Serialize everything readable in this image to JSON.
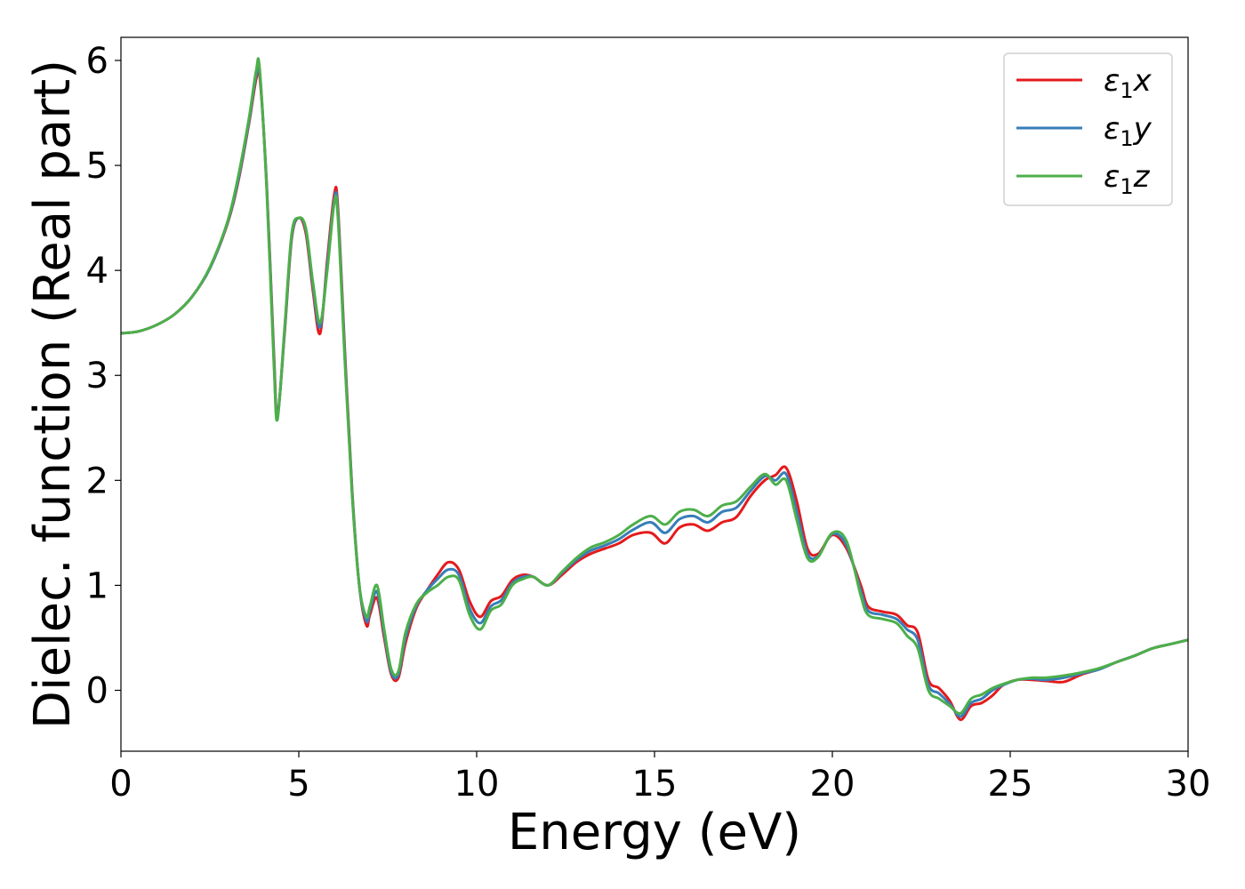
{
  "chart_data": {
    "type": "line",
    "xlabel": "Energy (eV)",
    "ylabel": "Dielec. function (Real part)",
    "xlim": [
      0,
      30
    ],
    "ylim": [
      -0.58,
      6.22
    ],
    "xticks": [
      "0",
      "5",
      "10",
      "15",
      "20",
      "25",
      "30"
    ],
    "yticks": [
      "0",
      "1",
      "2",
      "3",
      "4",
      "5",
      "6"
    ],
    "grid": false,
    "legend_position": "top-right",
    "series": [
      {
        "name": "ε₁x",
        "label_main": "ε",
        "label_sub": "1",
        "label_suffix": "x",
        "color": "#e41a1c",
        "x": [
          0,
          0.5,
          1,
          1.5,
          2,
          2.5,
          3,
          3.3,
          3.6,
          3.8,
          3.9,
          4.1,
          4.3,
          4.4,
          4.6,
          4.8,
          5,
          5.2,
          5.4,
          5.6,
          5.8,
          6,
          6.1,
          6.3,
          6.5,
          6.7,
          6.9,
          7,
          7.2,
          7.4,
          7.6,
          7.8,
          8,
          8.3,
          8.6,
          8.9,
          9.2,
          9.5,
          9.8,
          10.1,
          10.4,
          10.7,
          11,
          11.3,
          11.6,
          12,
          12.4,
          12.8,
          13.2,
          13.6,
          14,
          14.4,
          14.9,
          15.3,
          15.7,
          16.1,
          16.5,
          16.9,
          17.3,
          17.7,
          18.1,
          18.4,
          18.7,
          19,
          19.3,
          19.6,
          20,
          20.4,
          20.8,
          21,
          21.4,
          21.8,
          22.1,
          22.4,
          22.7,
          23,
          23.3,
          23.6,
          23.9,
          24.2,
          24.5,
          24.8,
          25.2,
          25.6,
          26,
          26.5,
          27,
          27.5,
          28,
          28.5,
          29,
          29.5,
          30
        ],
        "y": [
          3.4,
          3.42,
          3.48,
          3.58,
          3.75,
          4.02,
          4.45,
          4.85,
          5.4,
          5.82,
          5.85,
          4.8,
          3.2,
          2.62,
          3.4,
          4.3,
          4.5,
          4.35,
          3.8,
          3.4,
          4.1,
          4.73,
          4.6,
          3.2,
          1.9,
          1.0,
          0.62,
          0.72,
          0.88,
          0.5,
          0.15,
          0.12,
          0.45,
          0.78,
          0.95,
          1.1,
          1.22,
          1.15,
          0.85,
          0.7,
          0.85,
          0.9,
          1.05,
          1.1,
          1.08,
          1.0,
          1.1,
          1.22,
          1.3,
          1.35,
          1.4,
          1.48,
          1.5,
          1.4,
          1.55,
          1.58,
          1.52,
          1.6,
          1.65,
          1.85,
          2.0,
          2.05,
          2.12,
          1.8,
          1.35,
          1.3,
          1.48,
          1.35,
          1.0,
          0.8,
          0.75,
          0.72,
          0.62,
          0.55,
          0.1,
          0.02,
          -0.1,
          -0.28,
          -0.15,
          -0.12,
          -0.05,
          0.05,
          0.1,
          0.1,
          0.09,
          0.08,
          0.15,
          0.2,
          0.27,
          0.33,
          0.4,
          0.44,
          0.48
        ]
      },
      {
        "name": "ε₁y",
        "label_main": "ε",
        "label_sub": "1",
        "label_suffix": "y",
        "color": "#377eb8",
        "x": [
          0,
          0.5,
          1,
          1.5,
          2,
          2.5,
          3,
          3.3,
          3.6,
          3.8,
          3.9,
          4.1,
          4.3,
          4.4,
          4.6,
          4.8,
          5,
          5.2,
          5.4,
          5.6,
          5.8,
          6,
          6.1,
          6.3,
          6.5,
          6.7,
          6.9,
          7,
          7.2,
          7.4,
          7.6,
          7.8,
          8,
          8.3,
          8.6,
          8.9,
          9.2,
          9.5,
          9.8,
          10.1,
          10.4,
          10.7,
          11,
          11.3,
          11.6,
          12,
          12.4,
          12.8,
          13.2,
          13.6,
          14,
          14.4,
          14.9,
          15.3,
          15.7,
          16.1,
          16.5,
          16.9,
          17.3,
          17.7,
          18.1,
          18.4,
          18.7,
          19,
          19.3,
          19.6,
          20,
          20.4,
          20.8,
          21,
          21.4,
          21.8,
          22.1,
          22.4,
          22.7,
          23,
          23.3,
          23.6,
          23.9,
          24.2,
          24.5,
          24.8,
          25.2,
          25.6,
          26,
          26.5,
          27,
          27.5,
          28,
          28.5,
          29,
          29.5,
          30
        ],
        "y": [
          3.4,
          3.42,
          3.48,
          3.58,
          3.75,
          4.02,
          4.46,
          4.87,
          5.42,
          5.86,
          5.88,
          4.78,
          3.15,
          2.6,
          3.42,
          4.32,
          4.5,
          4.38,
          3.84,
          3.46,
          4.05,
          4.68,
          4.55,
          3.15,
          1.88,
          1.0,
          0.66,
          0.76,
          0.94,
          0.54,
          0.17,
          0.15,
          0.5,
          0.8,
          0.95,
          1.06,
          1.15,
          1.1,
          0.78,
          0.64,
          0.8,
          0.86,
          1.02,
          1.08,
          1.08,
          1.0,
          1.12,
          1.24,
          1.33,
          1.38,
          1.44,
          1.53,
          1.6,
          1.5,
          1.63,
          1.66,
          1.6,
          1.7,
          1.74,
          1.9,
          2.04,
          2.0,
          2.06,
          1.7,
          1.3,
          1.28,
          1.49,
          1.38,
          0.95,
          0.76,
          0.72,
          0.68,
          0.58,
          0.48,
          0.05,
          -0.03,
          -0.13,
          -0.25,
          -0.12,
          -0.08,
          0.0,
          0.05,
          0.1,
          0.11,
          0.1,
          0.12,
          0.16,
          0.2,
          0.27,
          0.33,
          0.4,
          0.44,
          0.48
        ]
      },
      {
        "name": "ε₁z",
        "label_main": "ε",
        "label_sub": "1",
        "label_suffix": "z",
        "color": "#4daf4a",
        "x": [
          0,
          0.5,
          1,
          1.5,
          2,
          2.5,
          3,
          3.3,
          3.6,
          3.8,
          3.9,
          4.1,
          4.3,
          4.4,
          4.6,
          4.8,
          5,
          5.2,
          5.4,
          5.6,
          5.8,
          6,
          6.1,
          6.3,
          6.5,
          6.7,
          6.9,
          7,
          7.2,
          7.4,
          7.6,
          7.8,
          8,
          8.3,
          8.6,
          8.9,
          9.2,
          9.5,
          9.8,
          10.1,
          10.4,
          10.7,
          11,
          11.3,
          11.6,
          12,
          12.4,
          12.8,
          13.2,
          13.6,
          14,
          14.4,
          14.9,
          15.3,
          15.7,
          16.1,
          16.5,
          16.9,
          17.3,
          17.7,
          18.1,
          18.4,
          18.7,
          19,
          19.3,
          19.6,
          20,
          20.4,
          20.8,
          21,
          21.4,
          21.8,
          22.1,
          22.4,
          22.7,
          23,
          23.3,
          23.6,
          23.9,
          24.2,
          24.5,
          24.8,
          25.2,
          25.6,
          26,
          26.5,
          27,
          27.5,
          28,
          28.5,
          29,
          29.5,
          30
        ],
        "y": [
          3.4,
          3.42,
          3.48,
          3.58,
          3.75,
          4.03,
          4.47,
          4.9,
          5.45,
          5.9,
          5.92,
          4.75,
          3.1,
          2.58,
          3.45,
          4.35,
          4.5,
          4.4,
          3.88,
          3.5,
          4.0,
          4.65,
          4.5,
          3.1,
          1.85,
          1.0,
          0.7,
          0.8,
          1.0,
          0.58,
          0.2,
          0.18,
          0.55,
          0.82,
          0.93,
          1.0,
          1.08,
          1.05,
          0.72,
          0.58,
          0.76,
          0.82,
          1.0,
          1.06,
          1.08,
          1.0,
          1.13,
          1.26,
          1.36,
          1.41,
          1.48,
          1.58,
          1.66,
          1.58,
          1.7,
          1.72,
          1.66,
          1.76,
          1.8,
          1.94,
          2.06,
          1.96,
          2.0,
          1.62,
          1.26,
          1.27,
          1.5,
          1.42,
          0.9,
          0.72,
          0.68,
          0.64,
          0.52,
          0.4,
          0.0,
          -0.08,
          -0.15,
          -0.22,
          -0.08,
          -0.04,
          0.02,
          0.06,
          0.1,
          0.12,
          0.12,
          0.14,
          0.17,
          0.21,
          0.27,
          0.33,
          0.4,
          0.44,
          0.48
        ]
      }
    ]
  }
}
